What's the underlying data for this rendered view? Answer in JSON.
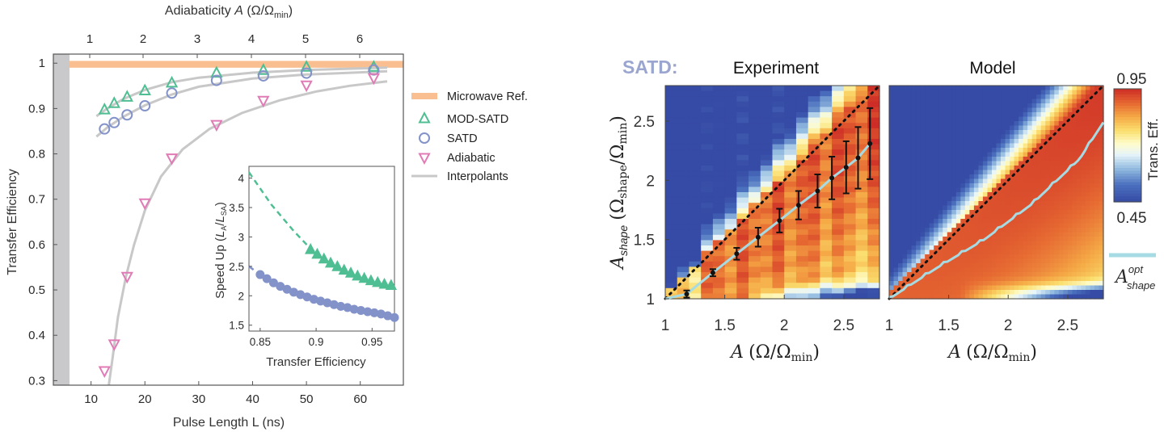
{
  "chart_data": [
    {
      "type": "scatter",
      "panel": "left",
      "xlabel": "Pulse Length L (ns)",
      "ylabel": "Transfer Efficiency",
      "top_axis_label": "Adiabaticity",
      "top_axis_symbol": "A",
      "top_axis_unit": "(Ω/Ω",
      "top_axis_unit_sub": "min",
      "top_axis_unit_close": ")",
      "xlim": [
        3,
        68
      ],
      "ylim": [
        0.29,
        1.02
      ],
      "x_ticks": [
        "10",
        "20",
        "30",
        "40",
        "50",
        "60"
      ],
      "y_ticks": [
        "0.3",
        "0.4",
        "0.5",
        "0.6",
        "0.7",
        "0.8",
        "0.9",
        "1"
      ],
      "top_ticks": [
        "1",
        "2",
        "3",
        "4",
        "5",
        "6"
      ],
      "colors": {
        "microwave": "#f9bf90",
        "mod_satd": "#4fbf93",
        "satd": "#8393c9",
        "adiabatic": "#e07bb6",
        "interp": "#c8c8c8",
        "dead_band": "#c9c9cb"
      },
      "legend": [
        {
          "label": "Microwave Ref.",
          "key": "microwave"
        },
        {
          "label": "MOD-SATD",
          "key": "mod_satd"
        },
        {
          "label": "SATD",
          "key": "satd"
        },
        {
          "label": "Adiabatic",
          "key": "adiabatic"
        },
        {
          "label": "Interpolants",
          "key": "interp"
        }
      ],
      "reference_band": [
        0.99,
        1.005
      ],
      "dead_band_x": [
        3,
        6
      ],
      "series": [
        {
          "name": "MOD-SATD",
          "marker": "triangle-up",
          "x": [
            12.5,
            14.3,
            16.7,
            20,
            25,
            33.3,
            42,
            50,
            62.5
          ],
          "y": [
            0.897,
            0.911,
            0.925,
            0.939,
            0.956,
            0.978,
            0.984,
            0.991,
            0.991
          ]
        },
        {
          "name": "SATD",
          "marker": "circle",
          "x": [
            12.5,
            14.3,
            16.7,
            20,
            25,
            33.3,
            42,
            50,
            62.5
          ],
          "y": [
            0.855,
            0.869,
            0.886,
            0.906,
            0.934,
            0.962,
            0.972,
            0.978,
            0.985
          ]
        },
        {
          "name": "Adiabatic",
          "marker": "triangle-down",
          "x": [
            12.5,
            14.3,
            16.7,
            20,
            25,
            33.3,
            42,
            50,
            62.5
          ],
          "y": [
            0.322,
            0.381,
            0.53,
            0.692,
            0.791,
            0.865,
            0.918,
            0.952,
            0.968
          ]
        }
      ],
      "inset": {
        "type": "scatter",
        "xlabel": "Transfer Efficiency",
        "ylabel": "Speed Up",
        "ylabel_symbol_num": "L",
        "ylabel_sub_num": "A",
        "ylabel_symbol_den": "L",
        "ylabel_sub_den": "SA",
        "xlim": [
          0.84,
          0.97
        ],
        "ylim": [
          1.4,
          4.2
        ],
        "x_ticks": [
          "0.85",
          "0.9",
          "0.95"
        ],
        "y_ticks": [
          "1.5",
          "2",
          "2.5",
          "3",
          "3.5",
          "4"
        ],
        "series": [
          {
            "name": "MOD-SATD",
            "marker": "triangle-up",
            "x": [
              0.895,
              0.901,
              0.907,
              0.913,
              0.919,
              0.925,
              0.931,
              0.937,
              0.943,
              0.949,
              0.955,
              0.961,
              0.967
            ],
            "y": [
              2.78,
              2.7,
              2.62,
              2.55,
              2.49,
              2.43,
              2.38,
              2.33,
              2.29,
              2.25,
              2.22,
              2.19,
              2.17
            ],
            "dashed_from": [
              [
                0.84,
                4.1
              ],
              [
                0.86,
                3.55
              ],
              [
                0.88,
                3.1
              ],
              [
                0.895,
                2.8
              ]
            ]
          },
          {
            "name": "SATD",
            "marker": "circle",
            "x": [
              0.85,
              0.856,
              0.862,
              0.868,
              0.874,
              0.88,
              0.886,
              0.892,
              0.898,
              0.904,
              0.91,
              0.916,
              0.922,
              0.928,
              0.934,
              0.94,
              0.946,
              0.952,
              0.958,
              0.964,
              0.97
            ],
            "y": [
              2.36,
              2.29,
              2.22,
              2.16,
              2.11,
              2.06,
              2.02,
              1.98,
              1.94,
              1.91,
              1.88,
              1.85,
              1.82,
              1.8,
              1.77,
              1.75,
              1.73,
              1.71,
              1.69,
              1.66,
              1.63
            ],
            "dashed_from": [
              [
                0.84,
                2.5
              ],
              [
                0.85,
                2.36
              ]
            ]
          }
        ]
      }
    },
    {
      "type": "heatmap",
      "panel": "experiment",
      "section_label": "SATD:",
      "title": "Experiment",
      "xlabel_symbol": "A",
      "xlabel_unit": "(Ω/Ω",
      "xlabel_sub": "min",
      "xlabel_close": ")",
      "ylabel_symbol": "A",
      "ylabel_symbol_sub": "shape",
      "ylabel_unit": "(Ω",
      "ylabel_unit_sub1": "shape",
      "ylabel_unit_mid": "/Ω",
      "ylabel_unit_sub2": "min",
      "ylabel_close": ")",
      "xlim": [
        1,
        2.8
      ],
      "ylim": [
        1,
        2.8
      ],
      "x_ticks": [
        "1",
        "1.5",
        "2",
        "2.5"
      ],
      "y_ticks": [
        "1",
        "1.5",
        "2",
        "2.5"
      ],
      "colorbar": {
        "min": "0.45",
        "max": "0.95",
        "label": "Trans. Eff."
      },
      "diagonal_dotted": true,
      "optimum": {
        "x": [
          1.18,
          1.4,
          1.6,
          1.78,
          1.96,
          2.12,
          2.28,
          2.4,
          2.52,
          2.62,
          2.72
        ],
        "y": [
          1.04,
          1.22,
          1.38,
          1.52,
          1.66,
          1.79,
          1.91,
          2.02,
          2.11,
          2.19,
          2.31
        ],
        "err": [
          0.03,
          0.03,
          0.05,
          0.08,
          0.1,
          0.12,
          0.14,
          0.18,
          0.22,
          0.26,
          0.3
        ]
      }
    },
    {
      "type": "heatmap",
      "panel": "model",
      "title": "Model",
      "xlabel_symbol": "A",
      "xlabel_unit": "(Ω/Ω",
      "xlabel_sub": "min",
      "xlabel_close": ")",
      "xlim": [
        1,
        2.8
      ],
      "ylim": [
        1,
        2.8
      ],
      "x_ticks": [
        "1",
        "1.5",
        "2",
        "2.5"
      ],
      "diagonal_dotted": true,
      "optimum_line": {
        "x": [
          1,
          1.4,
          1.8,
          2.2,
          2.6,
          2.8
        ],
        "y": [
          1,
          1.26,
          1.5,
          1.8,
          2.18,
          2.49
        ]
      },
      "legend": {
        "symbol": "A",
        "sup": "opt",
        "sub": "shape",
        "color": "#a6dbe3"
      }
    }
  ]
}
